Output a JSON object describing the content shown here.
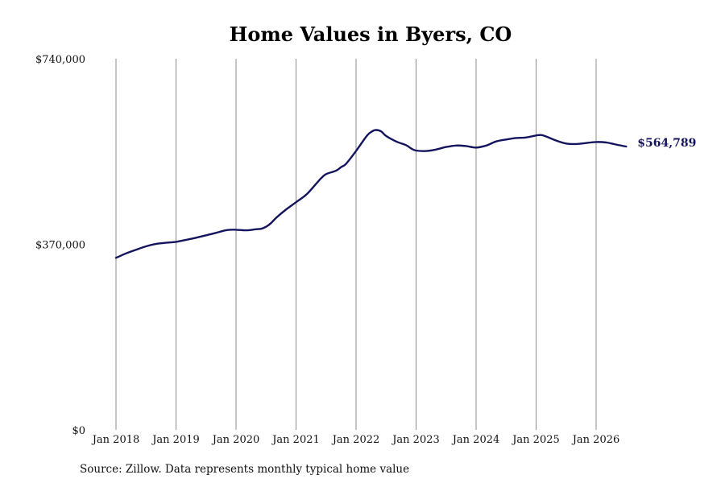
{
  "chart_data": {
    "type": "line",
    "title": "Home Values in Byers, CO",
    "source": "Source: Zillow. Data represents monthly typical home value",
    "xlabel": "",
    "ylabel": "",
    "ylim": [
      0,
      740000
    ],
    "y_ticks": [
      {
        "value": 0,
        "label": "$0"
      },
      {
        "value": 370000,
        "label": "$370,000"
      },
      {
        "value": 740000,
        "label": "$740,000"
      }
    ],
    "x_ticks": [
      {
        "value": 2018,
        "label": "Jan 2018"
      },
      {
        "value": 2019,
        "label": "Jan 2019"
      },
      {
        "value": 2020,
        "label": "Jan 2020"
      },
      {
        "value": 2021,
        "label": "Jan 2021"
      },
      {
        "value": 2022,
        "label": "Jan 2022"
      },
      {
        "value": 2023,
        "label": "Jan 2023"
      },
      {
        "value": 2024,
        "label": "Jan 2024"
      },
      {
        "value": 2025,
        "label": "Jan 2025"
      },
      {
        "value": 2026,
        "label": "Jan 2026"
      }
    ],
    "grid": "vertical",
    "line_color": "#14145e",
    "end_label": "$564,789",
    "series": [
      {
        "x": [
          2018.0,
          2018.17,
          2018.33,
          2018.5,
          2018.67,
          2018.83,
          2019.0,
          2019.17,
          2019.33,
          2019.5,
          2019.67,
          2019.83,
          2019.92,
          2020.0,
          2020.17,
          2020.33,
          2020.42,
          2020.5,
          2020.58,
          2020.67,
          2020.83,
          2021.0,
          2021.17,
          2021.33,
          2021.42,
          2021.5,
          2021.67,
          2021.75,
          2021.83,
          2022.0,
          2022.17,
          2022.25,
          2022.33,
          2022.42,
          2022.5,
          2022.67,
          2022.83,
          2022.92,
          2023.0,
          2023.17,
          2023.33,
          2023.5,
          2023.67,
          2023.83,
          2024.0,
          2024.17,
          2024.33,
          2024.5,
          2024.67,
          2024.83,
          2025.0,
          2025.08,
          2025.17,
          2025.33,
          2025.5,
          2025.67,
          2025.83,
          2026.0,
          2026.17,
          2026.33,
          2026.5
        ],
        "values": [
          343000,
          352000,
          359000,
          366000,
          371000,
          373000,
          375000,
          379000,
          383000,
          388000,
          393000,
          398000,
          399000,
          399000,
          398000,
          400000,
          401000,
          405000,
          412000,
          423000,
          439000,
          454000,
          469000,
          490000,
          502000,
          510000,
          517000,
          524000,
          530000,
          556000,
          585000,
          594000,
          598000,
          595000,
          586000,
          575000,
          568000,
          561000,
          557000,
          556000,
          559000,
          564000,
          567000,
          566000,
          563000,
          567000,
          575000,
          579000,
          582000,
          583000,
          587000,
          588000,
          585000,
          577000,
          571000,
          570000,
          572000,
          574000,
          573000,
          569000,
          565000
        ]
      }
    ]
  }
}
